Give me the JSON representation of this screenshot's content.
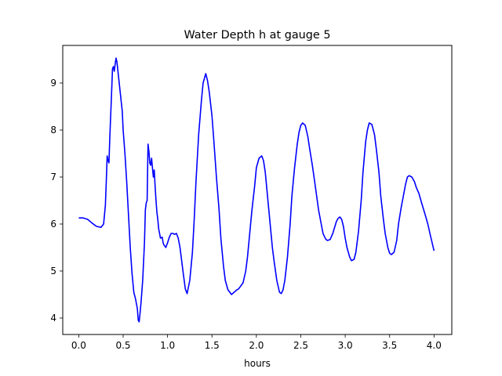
{
  "chart_data": {
    "type": "line",
    "title": "Water Depth h at gauge 5",
    "xlabel": "hours",
    "ylabel": "",
    "xlim": [
      -0.18,
      4.2
    ],
    "ylim": [
      3.65,
      9.8
    ],
    "xticks": [
      0.0,
      0.5,
      1.0,
      1.5,
      2.0,
      2.5,
      3.0,
      3.5,
      4.0
    ],
    "xtick_labels": [
      "0.0",
      "0.5",
      "1.0",
      "1.5",
      "2.0",
      "2.5",
      "3.0",
      "3.5",
      "4.0"
    ],
    "yticks": [
      4,
      5,
      6,
      7,
      8,
      9
    ],
    "ytick_labels": [
      "4",
      "5",
      "6",
      "7",
      "8",
      "9"
    ],
    "grid": false,
    "series": [
      {
        "color": "#0000ff",
        "x": [
          0.0,
          0.05,
          0.1,
          0.15,
          0.2,
          0.25,
          0.28,
          0.3,
          0.31,
          0.32,
          0.33,
          0.34,
          0.35,
          0.37,
          0.38,
          0.39,
          0.4,
          0.41,
          0.42,
          0.43,
          0.45,
          0.47,
          0.49,
          0.5,
          0.52,
          0.54,
          0.56,
          0.58,
          0.6,
          0.62,
          0.64,
          0.66,
          0.67,
          0.68,
          0.69,
          0.7,
          0.72,
          0.74,
          0.75,
          0.76,
          0.77,
          0.78,
          0.79,
          0.8,
          0.81,
          0.82,
          0.83,
          0.84,
          0.85,
          0.86,
          0.87,
          0.88,
          0.89,
          0.9,
          0.92,
          0.94,
          0.95,
          0.96,
          0.97,
          0.98,
          1.0,
          1.02,
          1.04,
          1.06,
          1.08,
          1.1,
          1.12,
          1.14,
          1.16,
          1.18,
          1.2,
          1.22,
          1.25,
          1.28,
          1.3,
          1.32,
          1.35,
          1.38,
          1.4,
          1.43,
          1.45,
          1.47,
          1.5,
          1.52,
          1.55,
          1.58,
          1.6,
          1.63,
          1.65,
          1.68,
          1.7,
          1.72,
          1.75,
          1.78,
          1.8,
          1.85,
          1.88,
          1.9,
          1.92,
          1.95,
          1.98,
          2.0,
          2.03,
          2.06,
          2.08,
          2.1,
          2.12,
          2.15,
          2.18,
          2.2,
          2.23,
          2.26,
          2.28,
          2.3,
          2.32,
          2.35,
          2.38,
          2.4,
          2.43,
          2.46,
          2.48,
          2.5,
          2.52,
          2.55,
          2.58,
          2.6,
          2.63,
          2.66,
          2.7,
          2.73,
          2.75,
          2.78,
          2.8,
          2.83,
          2.86,
          2.9,
          2.92,
          2.94,
          2.96,
          2.98,
          3.0,
          3.02,
          3.05,
          3.07,
          3.1,
          3.12,
          3.15,
          3.18,
          3.2,
          3.23,
          3.25,
          3.27,
          3.3,
          3.33,
          3.35,
          3.38,
          3.4,
          3.43,
          3.45,
          3.48,
          3.5,
          3.52,
          3.55,
          3.58,
          3.6,
          3.63,
          3.66,
          3.68,
          3.7,
          3.72,
          3.75,
          3.78,
          3.8,
          3.83,
          3.86,
          3.9,
          3.93,
          3.96,
          4.0
        ],
        "y": [
          6.13,
          6.13,
          6.1,
          6.02,
          5.95,
          5.93,
          6.0,
          6.4,
          6.9,
          7.45,
          7.35,
          7.3,
          7.85,
          8.8,
          9.3,
          9.35,
          9.25,
          9.4,
          9.53,
          9.45,
          9.1,
          8.75,
          8.4,
          8.0,
          7.5,
          6.9,
          6.2,
          5.5,
          4.95,
          4.55,
          4.4,
          4.2,
          3.95,
          3.92,
          4.1,
          4.3,
          4.8,
          5.6,
          6.3,
          6.45,
          6.5,
          7.7,
          7.55,
          7.3,
          7.25,
          7.4,
          7.2,
          7.0,
          7.15,
          6.8,
          6.5,
          6.25,
          6.1,
          5.9,
          5.7,
          5.72,
          5.6,
          5.55,
          5.53,
          5.5,
          5.6,
          5.72,
          5.8,
          5.8,
          5.78,
          5.8,
          5.7,
          5.5,
          5.2,
          4.9,
          4.62,
          4.52,
          4.8,
          5.4,
          6.1,
          6.9,
          7.9,
          8.6,
          9.0,
          9.2,
          9.05,
          8.8,
          8.3,
          7.8,
          7.0,
          6.3,
          5.7,
          5.1,
          4.8,
          4.6,
          4.55,
          4.5,
          4.55,
          4.6,
          4.62,
          4.75,
          5.0,
          5.3,
          5.7,
          6.3,
          6.8,
          7.2,
          7.4,
          7.45,
          7.35,
          7.1,
          6.7,
          6.1,
          5.5,
          5.2,
          4.8,
          4.55,
          4.52,
          4.6,
          4.8,
          5.3,
          6.0,
          6.6,
          7.2,
          7.7,
          7.95,
          8.1,
          8.15,
          8.1,
          7.85,
          7.6,
          7.25,
          6.85,
          6.3,
          6.0,
          5.8,
          5.68,
          5.65,
          5.67,
          5.8,
          6.05,
          6.12,
          6.15,
          6.1,
          5.95,
          5.7,
          5.5,
          5.3,
          5.22,
          5.25,
          5.4,
          5.85,
          6.5,
          7.1,
          7.75,
          8.0,
          8.15,
          8.12,
          7.9,
          7.6,
          7.1,
          6.6,
          6.1,
          5.8,
          5.5,
          5.38,
          5.35,
          5.4,
          5.65,
          6.0,
          6.35,
          6.65,
          6.85,
          7.0,
          7.03,
          7.0,
          6.9,
          6.78,
          6.65,
          6.45,
          6.2,
          6.0,
          5.75,
          5.43
        ]
      }
    ]
  }
}
